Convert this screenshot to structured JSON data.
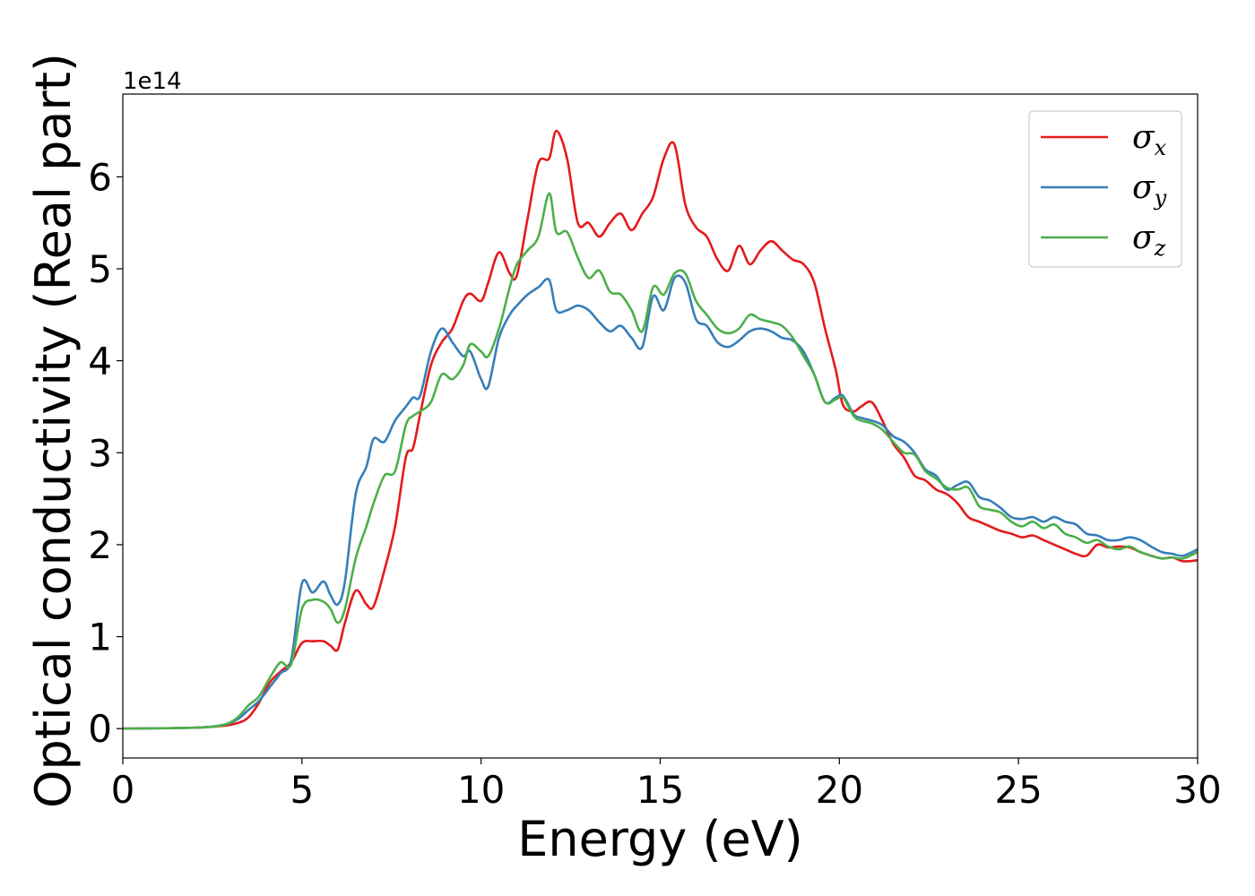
{
  "chart_data": {
    "type": "line",
    "xlabel": "Energy (eV)",
    "ylabel": "Optical conductivity (Real part)",
    "y_offset_label": "1e14",
    "xlim": [
      0,
      30
    ],
    "ylim": [
      -0.32,
      6.9
    ],
    "xticks": [
      0,
      5,
      10,
      15,
      20,
      25,
      30
    ],
    "yticks": [
      0,
      1,
      2,
      3,
      4,
      5,
      6
    ],
    "grid": false,
    "legend_position": "top-right",
    "series": [
      {
        "symbol": "σ",
        "subscript": "x",
        "color": "#e41a1c",
        "x": [
          0,
          2,
          2.8,
          3.2,
          3.5,
          3.8,
          4.1,
          4.4,
          4.7,
          5.0,
          5.3,
          5.6,
          5.8,
          6.0,
          6.2,
          6.5,
          6.8,
          7.0,
          7.3,
          7.6,
          7.9,
          8.1,
          8.3,
          8.6,
          8.9,
          9.2,
          9.5,
          9.7,
          10.0,
          10.2,
          10.5,
          10.8,
          11.0,
          11.3,
          11.6,
          11.9,
          12.1,
          12.4,
          12.7,
          13.0,
          13.3,
          13.6,
          13.9,
          14.2,
          14.5,
          14.8,
          15.1,
          15.4,
          15.7,
          16.0,
          16.3,
          16.6,
          16.9,
          17.2,
          17.5,
          17.8,
          18.1,
          18.4,
          18.7,
          19.0,
          19.3,
          19.6,
          19.9,
          20.1,
          20.4,
          20.6,
          20.9,
          21.2,
          21.5,
          21.8,
          22.1,
          22.4,
          22.7,
          23.0,
          23.3,
          23.6,
          23.9,
          24.2,
          24.5,
          24.8,
          25.1,
          25.4,
          25.7,
          26.0,
          26.3,
          26.6,
          26.9,
          27.2,
          27.5,
          27.8,
          28.1,
          28.4,
          28.7,
          29.0,
          29.3,
          29.6,
          30.0
        ],
        "y": [
          0,
          0.01,
          0.03,
          0.06,
          0.12,
          0.28,
          0.5,
          0.62,
          0.72,
          0.93,
          0.95,
          0.95,
          0.9,
          0.86,
          1.15,
          1.5,
          1.35,
          1.33,
          1.72,
          2.2,
          2.95,
          3.05,
          3.42,
          3.95,
          4.2,
          4.35,
          4.65,
          4.73,
          4.65,
          4.85,
          5.18,
          4.95,
          4.93,
          5.55,
          6.15,
          6.2,
          6.5,
          6.2,
          5.5,
          5.5,
          5.35,
          5.5,
          5.6,
          5.42,
          5.6,
          5.78,
          6.2,
          6.35,
          5.7,
          5.45,
          5.35,
          5.1,
          4.98,
          5.25,
          5.05,
          5.2,
          5.3,
          5.2,
          5.1,
          5.05,
          4.85,
          4.35,
          3.9,
          3.52,
          3.45,
          3.5,
          3.55,
          3.35,
          3.1,
          2.95,
          2.75,
          2.7,
          2.6,
          2.55,
          2.45,
          2.3,
          2.25,
          2.2,
          2.15,
          2.12,
          2.08,
          2.1,
          2.05,
          2.0,
          1.95,
          1.9,
          1.88,
          2.0,
          1.97,
          1.98,
          1.97,
          1.92,
          1.88,
          1.85,
          1.86,
          1.82,
          1.83
        ]
      },
      {
        "symbol": "σ",
        "subscript": "y",
        "color": "#377eb8",
        "x": [
          0,
          2,
          2.8,
          3.2,
          3.5,
          3.8,
          4.1,
          4.4,
          4.7,
          5.0,
          5.3,
          5.6,
          5.8,
          6.0,
          6.2,
          6.5,
          6.8,
          7.0,
          7.3,
          7.6,
          7.9,
          8.1,
          8.3,
          8.6,
          8.9,
          9.2,
          9.5,
          9.7,
          10.0,
          10.2,
          10.5,
          10.8,
          11.0,
          11.3,
          11.6,
          11.9,
          12.1,
          12.4,
          12.7,
          13.0,
          13.3,
          13.6,
          13.9,
          14.2,
          14.5,
          14.8,
          15.1,
          15.4,
          15.7,
          16.0,
          16.3,
          16.6,
          16.9,
          17.2,
          17.5,
          17.8,
          18.1,
          18.4,
          18.7,
          19.0,
          19.3,
          19.6,
          19.9,
          20.1,
          20.4,
          20.6,
          20.9,
          21.2,
          21.5,
          21.8,
          22.1,
          22.4,
          22.7,
          23.0,
          23.3,
          23.6,
          23.9,
          24.2,
          24.5,
          24.8,
          25.1,
          25.4,
          25.7,
          26.0,
          26.3,
          26.6,
          26.9,
          27.2,
          27.5,
          27.8,
          28.1,
          28.4,
          28.7,
          29.0,
          29.3,
          29.6,
          30.0
        ],
        "y": [
          0,
          0.01,
          0.04,
          0.1,
          0.2,
          0.3,
          0.45,
          0.6,
          0.75,
          1.58,
          1.48,
          1.6,
          1.45,
          1.35,
          1.6,
          2.55,
          2.85,
          3.15,
          3.12,
          3.35,
          3.5,
          3.6,
          3.62,
          4.1,
          4.35,
          4.2,
          4.05,
          4.1,
          3.8,
          3.72,
          4.25,
          4.5,
          4.6,
          4.72,
          4.8,
          4.88,
          4.55,
          4.55,
          4.6,
          4.55,
          4.42,
          4.32,
          4.38,
          4.25,
          4.15,
          4.7,
          4.55,
          4.9,
          4.85,
          4.45,
          4.38,
          4.2,
          4.15,
          4.22,
          4.32,
          4.35,
          4.32,
          4.25,
          4.22,
          4.1,
          3.85,
          3.55,
          3.6,
          3.62,
          3.42,
          3.38,
          3.35,
          3.3,
          3.18,
          3.12,
          3.0,
          2.82,
          2.75,
          2.6,
          2.65,
          2.68,
          2.52,
          2.48,
          2.4,
          2.3,
          2.28,
          2.3,
          2.25,
          2.3,
          2.25,
          2.22,
          2.12,
          2.1,
          2.05,
          2.05,
          2.08,
          2.05,
          1.98,
          1.92,
          1.9,
          1.88,
          1.95
        ]
      },
      {
        "symbol": "σ",
        "subscript": "z",
        "color": "#4daf4a",
        "x": [
          0,
          2,
          2.8,
          3.2,
          3.5,
          3.8,
          4.1,
          4.4,
          4.7,
          5.0,
          5.3,
          5.6,
          5.8,
          6.0,
          6.2,
          6.5,
          6.8,
          7.0,
          7.3,
          7.6,
          7.9,
          8.1,
          8.3,
          8.6,
          8.9,
          9.2,
          9.5,
          9.7,
          10.0,
          10.2,
          10.5,
          10.8,
          11.0,
          11.3,
          11.6,
          11.9,
          12.1,
          12.4,
          12.7,
          13.0,
          13.3,
          13.6,
          13.9,
          14.2,
          14.5,
          14.8,
          15.1,
          15.4,
          15.7,
          16.0,
          16.3,
          16.6,
          16.9,
          17.2,
          17.5,
          17.8,
          18.1,
          18.4,
          18.7,
          19.0,
          19.3,
          19.6,
          19.9,
          20.1,
          20.4,
          20.6,
          20.9,
          21.2,
          21.5,
          21.8,
          22.1,
          22.4,
          22.7,
          23.0,
          23.3,
          23.6,
          23.9,
          24.2,
          24.5,
          24.8,
          25.1,
          25.4,
          25.7,
          26.0,
          26.3,
          26.6,
          26.9,
          27.2,
          27.5,
          27.8,
          28.1,
          28.4,
          28.7,
          29.0,
          29.3,
          29.6,
          30.0
        ],
        "y": [
          0,
          0.01,
          0.04,
          0.12,
          0.25,
          0.35,
          0.55,
          0.72,
          0.7,
          1.3,
          1.4,
          1.38,
          1.3,
          1.15,
          1.3,
          1.85,
          2.2,
          2.45,
          2.75,
          2.8,
          3.3,
          3.4,
          3.45,
          3.55,
          3.85,
          3.8,
          3.95,
          4.18,
          4.1,
          4.05,
          4.35,
          4.8,
          5.05,
          5.2,
          5.35,
          5.82,
          5.4,
          5.4,
          5.12,
          4.9,
          4.98,
          4.75,
          4.72,
          4.55,
          4.32,
          4.8,
          4.72,
          4.95,
          4.95,
          4.65,
          4.5,
          4.35,
          4.3,
          4.35,
          4.5,
          4.45,
          4.42,
          4.38,
          4.25,
          4.05,
          3.85,
          3.55,
          3.58,
          3.6,
          3.4,
          3.35,
          3.32,
          3.25,
          3.12,
          3.0,
          2.98,
          2.8,
          2.72,
          2.62,
          2.6,
          2.62,
          2.42,
          2.38,
          2.35,
          2.25,
          2.2,
          2.25,
          2.18,
          2.22,
          2.12,
          2.08,
          2.02,
          2.05,
          1.98,
          1.95,
          1.98,
          1.92,
          1.88,
          1.85,
          1.86,
          1.85,
          1.92
        ]
      }
    ]
  }
}
